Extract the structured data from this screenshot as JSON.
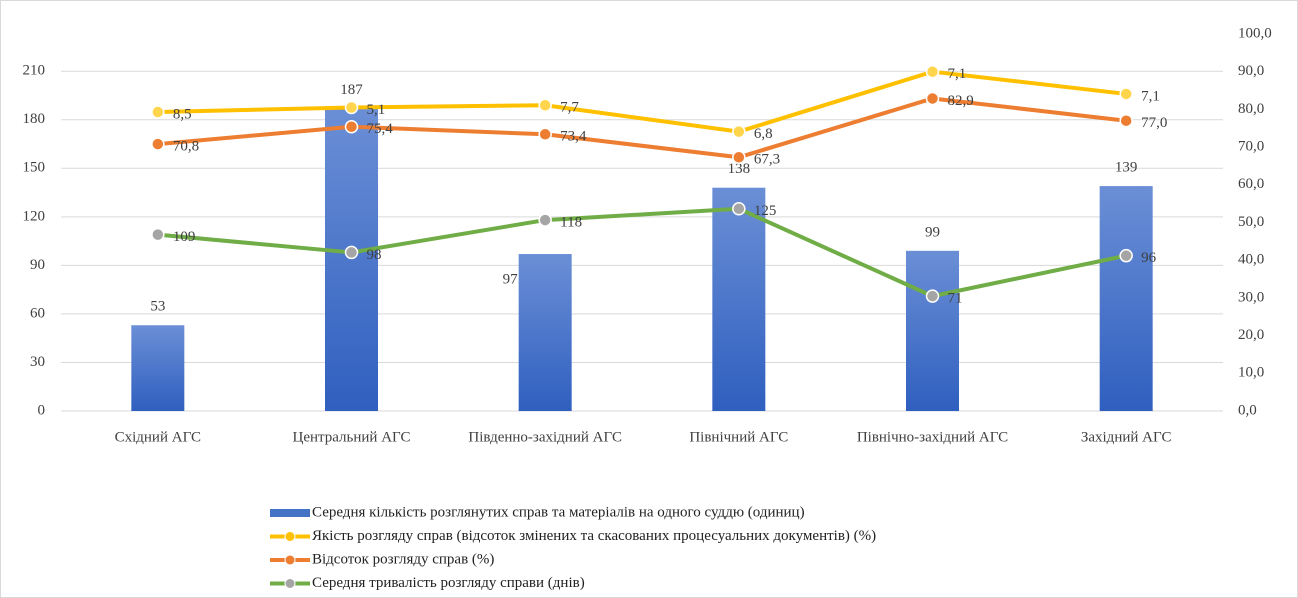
{
  "chart_data": {
    "type": "bar",
    "categories": [
      "Східний АГС",
      "Центральний АГС",
      "Південно-західний АГС",
      "Північний АГС",
      "Північно-західний АГС",
      "Західний АГС"
    ],
    "series": [
      {
        "name": "Середня кількість  розглянутих справ та матеріалів  на одного суддю (одиниц)",
        "type": "bar",
        "color": "#4472c4",
        "values": [
          53,
          187,
          97,
          138,
          99,
          139
        ]
      },
      {
        "name": "Якість розгляду справ (відсоток змінених та скасованих процесуальних документів) (%)",
        "type": "line",
        "axis": "y2",
        "stacked_on": 2,
        "color": "#ffc000",
        "values": [
          8.5,
          5.1,
          7.7,
          6.8,
          7.1,
          7.1
        ],
        "value_labels": [
          "8,5",
          "5,1",
          "7,7",
          "6,8",
          "7,1",
          "7,1"
        ]
      },
      {
        "name": "Відсоток розгляду справ (%)",
        "type": "line",
        "axis": "y2",
        "color": "#ed7d31",
        "values": [
          70.8,
          75.4,
          73.4,
          67.3,
          82.9,
          77.0
        ],
        "value_labels": [
          "70,8",
          "75,4",
          "73,4",
          "67,3",
          "82,9",
          "77,0"
        ]
      },
      {
        "name": "Середня тривалість розгляду справи (днів)",
        "type": "line",
        "color": "#70ad47",
        "values": [
          109,
          98,
          118,
          125,
          71,
          96
        ]
      }
    ],
    "ylim": [
      0,
      233
    ],
    "yticks": [
      0,
      30,
      60,
      90,
      120,
      150,
      180,
      210
    ],
    "y2lim": [
      0,
      100
    ],
    "y2ticks": [
      {
        "value": 0,
        "label": "0,0"
      },
      {
        "value": 10,
        "label": "10,0"
      },
      {
        "value": 20,
        "label": "20,0"
      },
      {
        "value": 30,
        "label": "30,0"
      },
      {
        "value": 40,
        "label": "40,0"
      },
      {
        "value": 50,
        "label": "50,0"
      },
      {
        "value": 60,
        "label": "60,0"
      },
      {
        "value": 70,
        "label": "70,0"
      },
      {
        "value": 80,
        "label": "80,0"
      },
      {
        "value": 90,
        "label": "90,0"
      },
      {
        "value": 100,
        "label": "100,0"
      }
    ],
    "grid": true,
    "legend": "bottom"
  }
}
